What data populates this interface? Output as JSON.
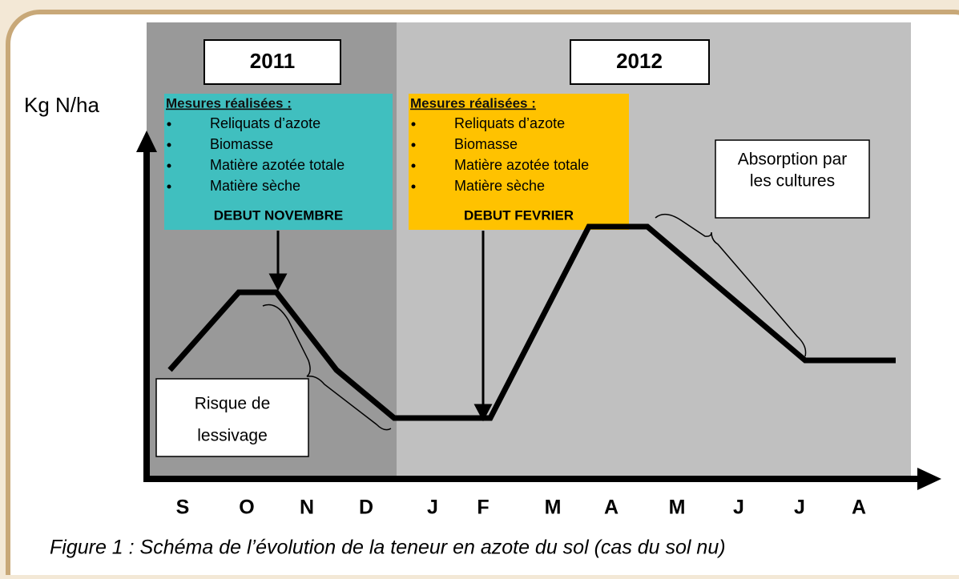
{
  "y_axis_label": "Kg N/ha",
  "months": [
    "S",
    "O",
    "N",
    "D",
    "J",
    "F",
    "M",
    "A",
    "M",
    "J",
    "J",
    "A"
  ],
  "years": [
    "2011",
    "2012"
  ],
  "measure_boxes": [
    {
      "title": "Mesures réalisées :",
      "items": [
        "Reliquats d’azote",
        "Biomasse",
        "Matière azotée totale",
        "Matière sèche"
      ],
      "period": "DEBUT NOVEMBRE"
    },
    {
      "title": "Mesures réalisées :",
      "items": [
        "Reliquats d’azote",
        "Biomasse",
        "Matière azotée totale",
        "Matière sèche"
      ],
      "period": "DEBUT FEVRIER"
    }
  ],
  "absorption_note": [
    "Absorption par",
    "les cultures"
  ],
  "leaching_note": [
    "Risque de",
    "lessivage"
  ],
  "caption": "Figure 1 : Schéma de l’évolution de la teneur en azote du sol (cas du sol nu)"
}
